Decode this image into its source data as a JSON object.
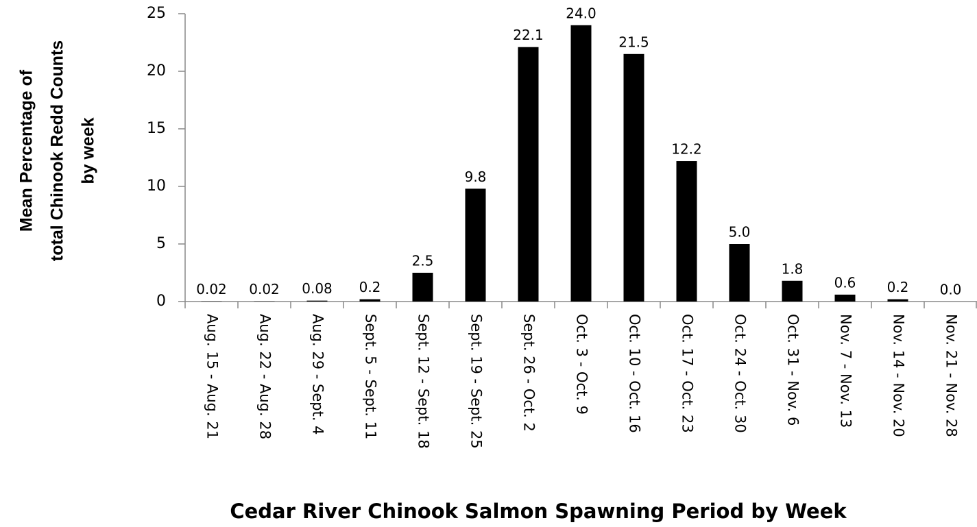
{
  "chart_data": {
    "type": "bar",
    "x_label": "Cedar River Chinook Salmon Spawning Period by Week",
    "y_label": [
      "Mean Percentage of",
      "total Chinook Redd Counts",
      "by week"
    ],
    "categories": [
      "Aug. 15 - Aug. 21",
      "Aug. 22 - Aug. 28",
      "Aug. 29 - Sept. 4",
      "Sept. 5 - Sept. 11",
      "Sept. 12 - Sept. 18",
      "Sept. 19 - Sept. 25",
      "Sept. 26 - Oct. 2",
      "Oct. 3 -  Oct. 9",
      "Oct. 10 -  Oct. 16",
      "Oct. 17 -  Oct. 23",
      "Oct. 24 -  Oct. 30",
      "Oct. 31 -  Nov. 6",
      "Nov. 7 -  Nov. 13",
      "Nov. 14 -  Nov. 20",
      "Nov. 21 -  Nov. 28"
    ],
    "values": [
      0.02,
      0.02,
      0.08,
      0.2,
      2.5,
      9.8,
      22.1,
      24.0,
      21.5,
      12.2,
      5.0,
      1.8,
      0.6,
      0.2,
      0.0
    ],
    "value_labels": [
      "0.02",
      "0.02",
      "0.08",
      "0.2",
      "2.5",
      "9.8",
      "22.1",
      "24.0",
      "21.5",
      "12.2",
      "5.0",
      "1.8",
      "0.6",
      "0.2",
      "0.0"
    ],
    "color": "#000000",
    "ylim": [
      0,
      25
    ],
    "yticks": [
      0,
      5,
      10,
      15,
      20,
      25
    ],
    "grid": false
  }
}
